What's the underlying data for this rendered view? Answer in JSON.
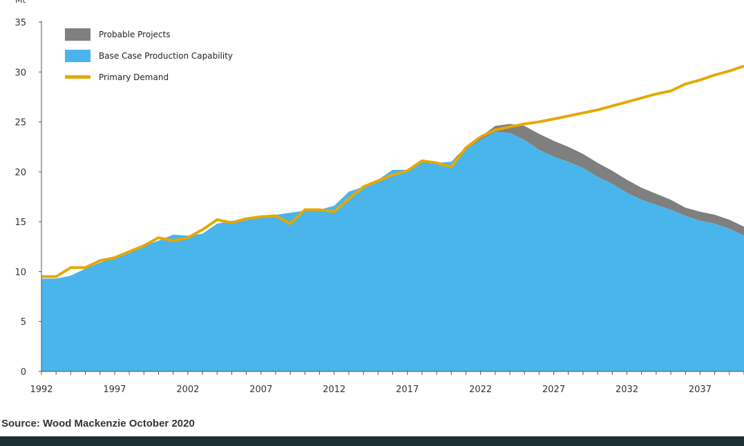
{
  "source_text": "Source: Wood Mackenzie October 2020",
  "colors": {
    "probable": "#7f7f7f",
    "base": "#4ab5ea",
    "demand": "#e5a800",
    "axis": "#555555",
    "bottom_bar": "#1f2f33"
  },
  "chart_data": {
    "type": "area",
    "unit_label": "Mt",
    "ylim": [
      0,
      35
    ],
    "yticks": [
      0,
      5,
      10,
      15,
      20,
      25,
      30,
      35
    ],
    "xlim": [
      1992,
      2040
    ],
    "xticks": [
      1992,
      1997,
      2002,
      2007,
      2012,
      2017,
      2022,
      2027,
      2032,
      2037
    ],
    "legend_position": "top-left",
    "grid": false,
    "legend": [
      {
        "name": "Probable Projects",
        "swatch": "area",
        "color": "#7f7f7f"
      },
      {
        "name": "Base Case Production Capability",
        "swatch": "area",
        "color": "#4ab5ea"
      },
      {
        "name": "Primary Demand",
        "swatch": "line",
        "color": "#e5a800"
      }
    ],
    "x": [
      1992,
      1993,
      1994,
      1995,
      1996,
      1997,
      1998,
      1999,
      2000,
      2001,
      2002,
      2003,
      2004,
      2005,
      2006,
      2007,
      2008,
      2009,
      2010,
      2011,
      2012,
      2013,
      2014,
      2015,
      2016,
      2017,
      2018,
      2019,
      2020,
      2021,
      2022,
      2023,
      2024,
      2025,
      2026,
      2027,
      2028,
      2029,
      2030,
      2031,
      2032,
      2033,
      2034,
      2035,
      2036,
      2037,
      2038,
      2039,
      2040
    ],
    "series": [
      {
        "name": "Base Case Production Capability",
        "type": "area",
        "values": [
          9.3,
          9.3,
          9.6,
          10.3,
          10.9,
          11.4,
          12.1,
          12.6,
          13.1,
          13.7,
          13.6,
          13.8,
          14.8,
          15.1,
          15.2,
          15.4,
          15.7,
          15.9,
          16.1,
          16.2,
          16.6,
          18.0,
          18.5,
          19.2,
          20.2,
          20.2,
          21.0,
          20.9,
          21.0,
          22.2,
          23.2,
          24.0,
          23.9,
          23.2,
          22.2,
          21.5,
          21.0,
          20.4,
          19.5,
          18.8,
          17.9,
          17.2,
          16.7,
          16.2,
          15.6,
          15.1,
          14.8,
          14.3,
          13.6
        ]
      },
      {
        "name": "Probable Projects",
        "type": "area",
        "values": [
          0,
          0,
          0,
          0,
          0,
          0,
          0,
          0,
          0,
          0,
          0,
          0,
          0,
          0,
          0,
          0,
          0,
          0,
          0,
          0,
          0,
          0,
          0,
          0,
          0,
          0,
          0,
          0,
          0,
          0.3,
          0.3,
          0.6,
          0.9,
          1.4,
          1.6,
          1.6,
          1.5,
          1.4,
          1.4,
          1.3,
          1.3,
          1.2,
          1.1,
          1.0,
          0.8,
          0.9,
          0.9,
          0.9,
          0.9
        ]
      },
      {
        "name": "Primary Demand",
        "type": "line",
        "values": [
          9.5,
          9.5,
          10.4,
          10.4,
          11.1,
          11.4,
          12.0,
          12.6,
          13.4,
          13.1,
          13.4,
          14.2,
          15.2,
          14.9,
          15.3,
          15.5,
          15.6,
          14.8,
          16.2,
          16.2,
          16.0,
          17.3,
          18.5,
          19.1,
          19.7,
          20.1,
          21.1,
          20.9,
          20.5,
          22.4,
          23.5,
          24.2,
          24.5,
          24.8,
          25.0,
          25.3,
          25.6,
          25.9,
          26.2,
          26.6,
          27.0,
          27.4,
          27.8,
          28.1,
          28.8,
          29.2,
          29.7,
          30.1,
          30.6
        ]
      }
    ]
  }
}
